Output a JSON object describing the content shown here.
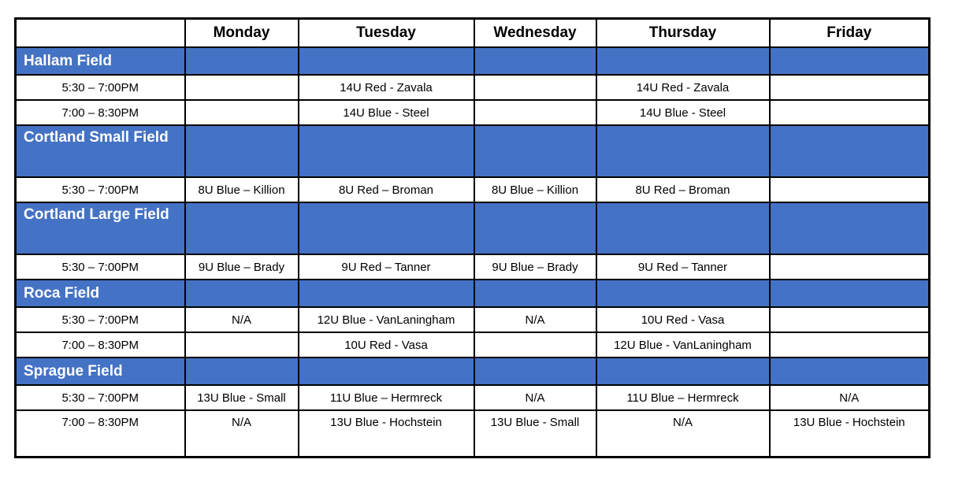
{
  "colors": {
    "section_bg": "#4472C4",
    "section_text": "#ffffff",
    "border": "#000000"
  },
  "header": {
    "days": [
      "",
      "Monday",
      "Tuesday",
      "Wednesday",
      "Thursday",
      "Friday"
    ]
  },
  "sections": [
    {
      "field": "Hallam Field",
      "tall": false,
      "rows": [
        {
          "time": "5:30 – 7:00PM",
          "tall": false,
          "cells": [
            "",
            "14U Red - Zavala",
            "",
            "14U Red - Zavala",
            ""
          ]
        },
        {
          "time": "7:00 – 8:30PM",
          "tall": false,
          "cells": [
            "",
            "14U Blue - Steel",
            "",
            "14U Blue - Steel",
            ""
          ]
        }
      ]
    },
    {
      "field": "Cortland Small Field",
      "tall": true,
      "rows": [
        {
          "time": "5:30 – 7:00PM",
          "tall": false,
          "cells": [
            "8U Blue – Killion",
            "8U Red – Broman",
            "8U Blue – Killion",
            "8U Red – Broman",
            ""
          ]
        }
      ]
    },
    {
      "field": "Cortland Large Field",
      "tall": true,
      "rows": [
        {
          "time": "5:30 – 7:00PM",
          "tall": false,
          "cells": [
            "9U Blue – Brady",
            "9U Red – Tanner",
            "9U Blue – Brady",
            "9U Red – Tanner",
            ""
          ]
        }
      ]
    },
    {
      "field": "Roca Field",
      "tall": false,
      "rows": [
        {
          "time": "5:30 – 7:00PM",
          "tall": false,
          "cells": [
            "N/A",
            "12U Blue - VanLaningham",
            "N/A",
            "10U Red - Vasa",
            ""
          ]
        },
        {
          "time": "7:00 – 8:30PM",
          "tall": false,
          "cells": [
            "",
            "10U Red - Vasa",
            "",
            "12U Blue - VanLaningham",
            ""
          ]
        }
      ]
    },
    {
      "field": "Sprague Field",
      "tall": false,
      "rows": [
        {
          "time": "5:30 – 7:00PM",
          "tall": false,
          "cells": [
            "13U Blue - Small",
            "11U Blue – Hermreck",
            "N/A",
            "11U Blue – Hermreck",
            "N/A"
          ]
        },
        {
          "time": "7:00 – 8:30PM",
          "tall": true,
          "cells": [
            "N/A",
            "13U Blue - Hochstein",
            "13U Blue - Small",
            "N/A",
            "13U Blue - Hochstein"
          ]
        }
      ]
    }
  ]
}
